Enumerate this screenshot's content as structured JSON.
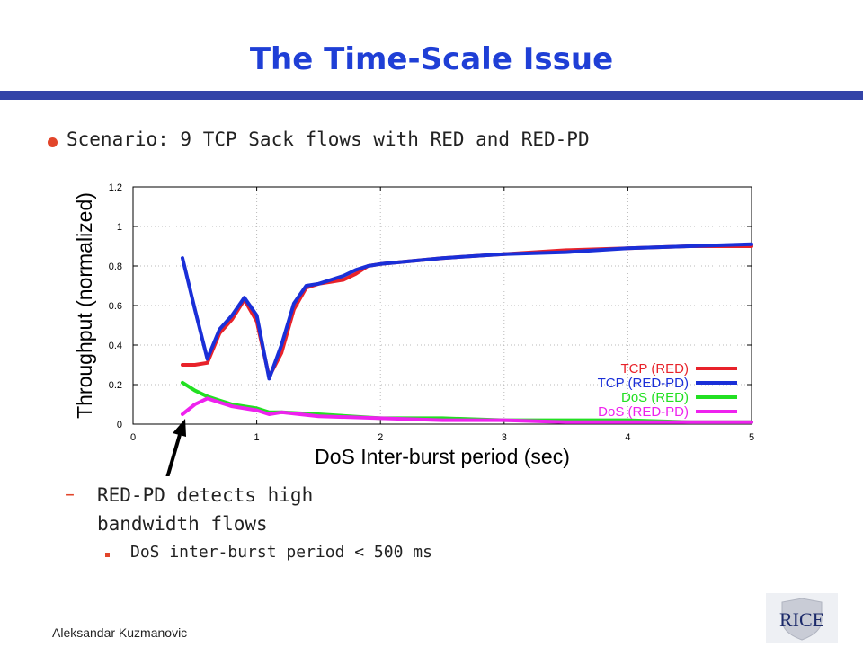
{
  "slide": {
    "title": "The Time-Scale Issue",
    "bullet": "Scenario: 9 TCP Sack flows with RED and RED-PD",
    "sub_bullet_marker": "–",
    "sub_bullet_line1": "RED-PD detects high",
    "sub_bullet_line2": "bandwidth flows",
    "sub_sub_bullet": "DoS inter-burst period < 500 ms",
    "footer": "Aleksandar Kuzmanovic",
    "logo_text": "RICE"
  },
  "colors": {
    "title": "#1f3fd6",
    "bullet": "#e2452a",
    "tcp_red": "#e8222a",
    "tcp_redpd": "#1a2fd8",
    "dos_red": "#22e022",
    "dos_redpd": "#ee22ee"
  },
  "chart_data": {
    "type": "line",
    "xlabel": "DoS Inter-burst period (sec)",
    "ylabel": "Throughput (normalized)",
    "xlim": [
      0,
      5
    ],
    "ylim": [
      0,
      1.2
    ],
    "xticks": [
      "0",
      "1",
      "2",
      "3",
      "4",
      "5"
    ],
    "yticks": [
      "0",
      "0.2",
      "0.4",
      "0.6",
      "0.8",
      "1",
      "1.2"
    ],
    "grid": true,
    "legend_position": "bottom-right",
    "series": [
      {
        "name": "TCP (RED)",
        "color": "#e8222a",
        "x": [
          0.4,
          0.5,
          0.6,
          0.7,
          0.8,
          0.9,
          1.0,
          1.1,
          1.2,
          1.3,
          1.4,
          1.5,
          1.6,
          1.7,
          1.8,
          1.9,
          2.0,
          2.5,
          3.0,
          3.5,
          4.0,
          4.5,
          5.0
        ],
        "y": [
          0.3,
          0.3,
          0.31,
          0.46,
          0.53,
          0.63,
          0.52,
          0.24,
          0.36,
          0.58,
          0.69,
          0.71,
          0.72,
          0.73,
          0.76,
          0.8,
          0.81,
          0.84,
          0.86,
          0.88,
          0.89,
          0.9,
          0.9
        ]
      },
      {
        "name": "TCP (RED-PD)",
        "color": "#1a2fd8",
        "x": [
          0.4,
          0.5,
          0.6,
          0.7,
          0.8,
          0.9,
          1.0,
          1.1,
          1.2,
          1.3,
          1.4,
          1.5,
          1.6,
          1.7,
          1.8,
          1.9,
          2.0,
          2.5,
          3.0,
          3.5,
          4.0,
          4.5,
          5.0
        ],
        "y": [
          0.84,
          0.58,
          0.33,
          0.48,
          0.55,
          0.64,
          0.55,
          0.23,
          0.4,
          0.61,
          0.7,
          0.71,
          0.73,
          0.75,
          0.78,
          0.8,
          0.81,
          0.84,
          0.86,
          0.87,
          0.89,
          0.9,
          0.91
        ]
      },
      {
        "name": "DoS (RED)",
        "color": "#22e022",
        "x": [
          0.4,
          0.5,
          0.6,
          0.7,
          0.8,
          0.9,
          1.0,
          1.1,
          1.2,
          1.5,
          2.0,
          2.5,
          3.0,
          3.5,
          4.0,
          4.5,
          5.0
        ],
        "y": [
          0.21,
          0.17,
          0.14,
          0.12,
          0.1,
          0.09,
          0.08,
          0.06,
          0.06,
          0.05,
          0.03,
          0.03,
          0.02,
          0.02,
          0.02,
          0.01,
          0.01
        ]
      },
      {
        "name": "DoS (RED-PD)",
        "color": "#ee22ee",
        "x": [
          0.4,
          0.5,
          0.6,
          0.7,
          0.8,
          0.9,
          1.0,
          1.1,
          1.2,
          1.5,
          2.0,
          2.5,
          3.0,
          3.5,
          4.0,
          4.5,
          5.0
        ],
        "y": [
          0.05,
          0.1,
          0.13,
          0.11,
          0.09,
          0.08,
          0.07,
          0.05,
          0.06,
          0.04,
          0.03,
          0.02,
          0.02,
          0.01,
          0.01,
          0.01,
          0.01
        ]
      }
    ]
  }
}
